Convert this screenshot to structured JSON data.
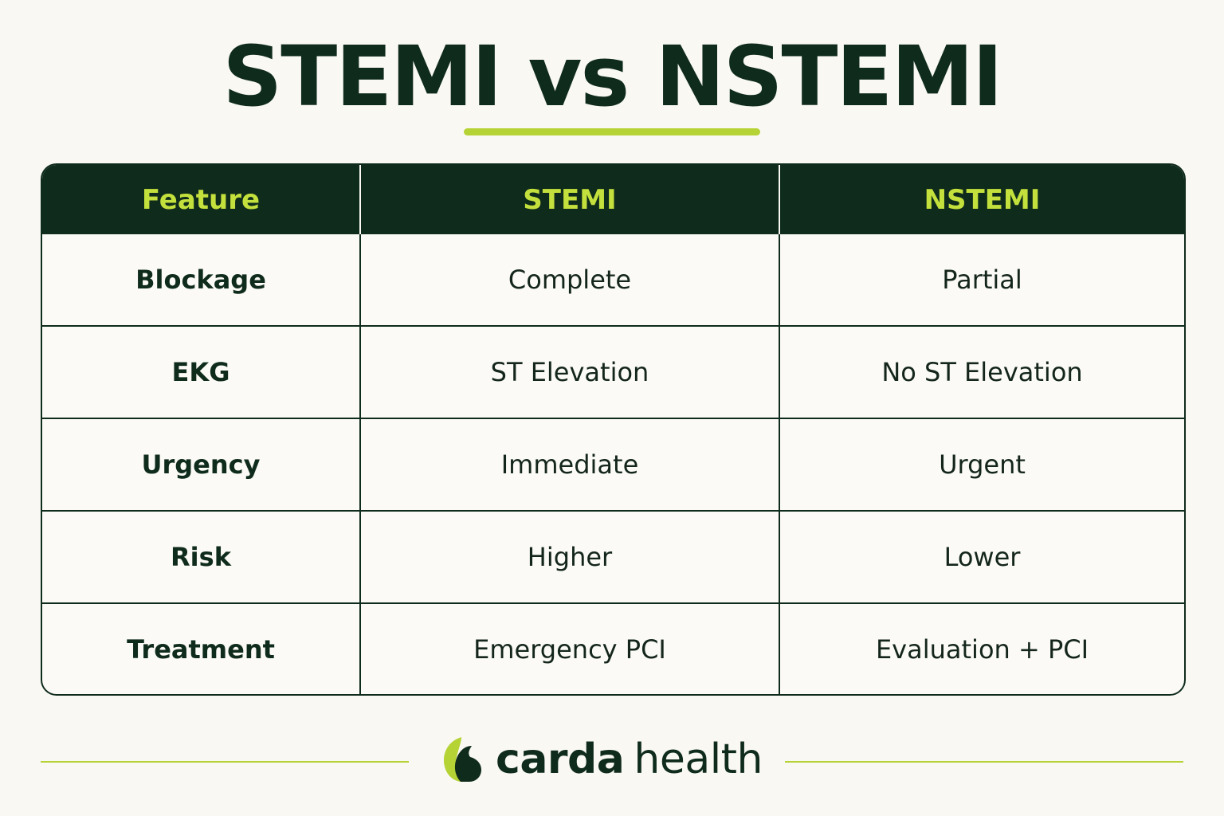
{
  "title": "STEMI vs NSTEMI",
  "table": {
    "headers": [
      "Feature",
      "STEMI",
      "NSTEMI"
    ],
    "rows": [
      [
        "Blockage",
        "Complete",
        "Partial"
      ],
      [
        "EKG",
        "ST Elevation",
        "No ST Elevation"
      ],
      [
        "Urgency",
        "Immediate",
        "Urgent"
      ],
      [
        "Risk",
        "Higher",
        "Lower"
      ],
      [
        "Treatment",
        "Emergency PCI",
        "Evaluation + PCI"
      ]
    ]
  },
  "brand": {
    "strong": "carda",
    "light": "health"
  },
  "colors": {
    "background": "#f9f8f3",
    "dark_green": "#0f2b1b",
    "accent_lime": "#b5d334",
    "header_text": "#c4e03c"
  }
}
